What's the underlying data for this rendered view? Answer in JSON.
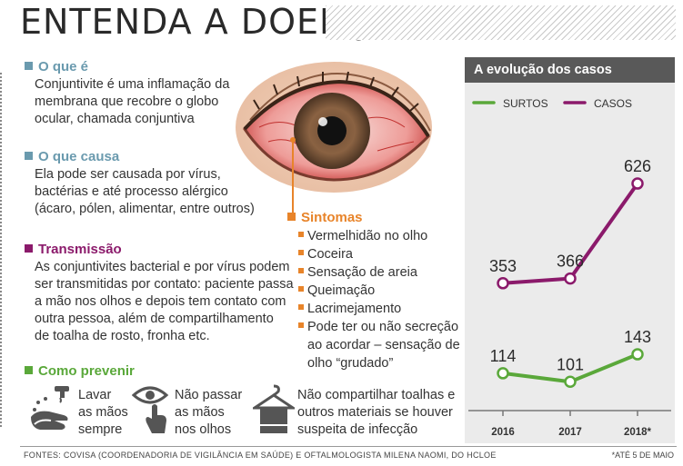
{
  "title": "ENTENDA A DOENÇA",
  "sections": {
    "what": {
      "heading": "O que é",
      "color": "#6a9aae",
      "lines": [
        "Conjuntivite é uma inflamação da",
        "membrana que recobre o globo",
        "ocular, chamada conjuntiva"
      ]
    },
    "cause": {
      "heading": "O que causa",
      "color": "#6a9aae",
      "lines": [
        "Ela pode ser causada por vírus,",
        "bactérias e até processo alérgico",
        "(ácaro, pólen, alimentar, entre outros)"
      ]
    },
    "transmission": {
      "heading": "Transmissão",
      "color": "#8b1a6b",
      "lines": [
        "As conjuntivites bacterial e por vírus podem",
        "ser transmitidas por contato: paciente passa",
        "a mão nos olhos e depois tem contato com",
        "outra pessoa, além de compartilhamento",
        "de toalha de rosto, fronha etc."
      ]
    },
    "prevent": {
      "heading": "Como prevenir",
      "color": "#5aa83a",
      "items": [
        {
          "icon": "hand-washing-icon",
          "lines": [
            "Lavar",
            "as mãos",
            "sempre"
          ]
        },
        {
          "icon": "eye-touch-icon",
          "lines": [
            "Não passar",
            "as mãos",
            "nos olhos"
          ]
        },
        {
          "icon": "towel-hanger-icon",
          "lines": [
            "Não compartilhar toalhas e",
            "outros materiais se houver",
            "suspeita de infecção"
          ]
        }
      ]
    },
    "symptoms": {
      "heading": "Sintomas",
      "color": "#e8842a",
      "items": [
        {
          "lines": [
            "Vermelhidão no olho"
          ]
        },
        {
          "lines": [
            "Coceira"
          ]
        },
        {
          "lines": [
            "Sensação de areia"
          ]
        },
        {
          "lines": [
            "Queimação"
          ]
        },
        {
          "lines": [
            "Lacrimejamento"
          ]
        },
        {
          "lines": [
            "Pode ter ou não secreção",
            "ao acordar – sensação de",
            "olho “grudado”"
          ]
        }
      ]
    }
  },
  "chart_data": {
    "type": "line",
    "title": "A evolução dos casos",
    "categories": [
      "2016",
      "2017",
      "2018*"
    ],
    "series": [
      {
        "name": "SURTOS",
        "color": "#5aa83a",
        "values": [
          114,
          101,
          143
        ]
      },
      {
        "name": "CASOS",
        "color": "#8b1a6b",
        "values": [
          353,
          366,
          626
        ]
      }
    ],
    "legend": "top",
    "grid": false
  },
  "footer": {
    "source": "FONTES: COVISA (COORDENADORIA DE VIGILÂNCIA EM SAÚDE) E OFTALMOLOGISTA MILENA NAOMI, DO HCLOE",
    "note": "*ATÉ 5 DE MAIO"
  }
}
